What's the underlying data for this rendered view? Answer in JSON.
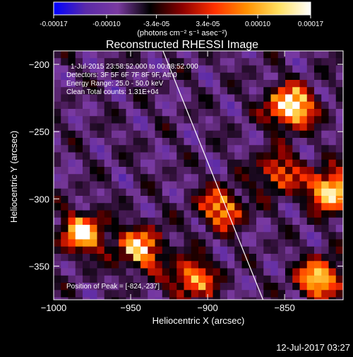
{
  "colorbar": {
    "tick_labels": [
      "-0.00017",
      "-0.00010",
      "-3.4e-05",
      "3.4e-05",
      "0.00010",
      "0.00017"
    ],
    "tick_values": [
      -0.00017,
      -0.0001,
      -3.4e-05,
      3.4e-05,
      0.0001,
      0.00017
    ],
    "range": [
      -0.00017,
      0.00017
    ],
    "units_label": "(photons cm⁻² s⁻¹ asec⁻²)",
    "colors": [
      "#0000ff",
      "#5a2aa8",
      "#7a3aa0",
      "#000000",
      "#8b0000",
      "#ff3000",
      "#ff9000",
      "#ffe060",
      "#ffffff"
    ]
  },
  "chart_data": {
    "type": "heatmap",
    "title": "Reconstructed RHESSI Image",
    "xlabel": "Heliocentric X (arcsec)",
    "ylabel": "Heliocentric Y (arcsec)",
    "xlim": [
      -1000,
      -812
    ],
    "ylim": [
      -375,
      -190
    ],
    "xticks": [
      -1000,
      -950,
      -900,
      -850
    ],
    "xtick_labels": [
      "−1000",
      "−950",
      "−900",
      "−850"
    ],
    "yticks": [
      -200,
      -250,
      -300,
      -350
    ],
    "ytick_labels": [
      "−200",
      "−250",
      "−300",
      "−350"
    ],
    "annotations": [
      "1-Jul-2015 23:58:52.000 to 00:08:52.000",
      "Detectors: 3F 5F 6F 7F 8F 9F, Att 0",
      "Energy Range: 25.0 - 50.0 keV",
      "Clean     Total counts: 1.31E+04",
      "Position of Peak = [-824,-237]"
    ],
    "limb_line": {
      "x": [
        -929,
        -864
      ],
      "y": [
        -190,
        -375
      ]
    },
    "peak_position": [
      -824,
      -237
    ],
    "grid": false
  },
  "footer": {
    "timestamp": "12-Jul-2017 03:27"
  }
}
